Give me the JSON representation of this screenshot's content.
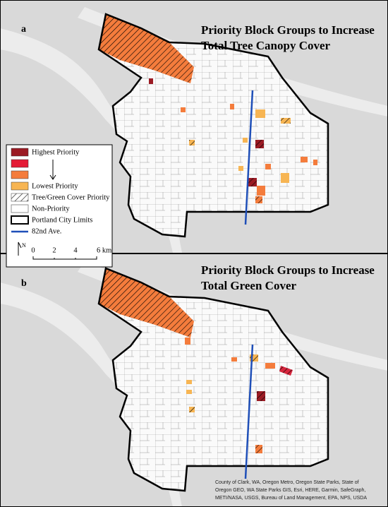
{
  "panels": [
    {
      "label": "a",
      "title": [
        "Priority Block Groups to Increase",
        "Total Tree Canopy Cover"
      ]
    },
    {
      "label": "b",
      "title": [
        "Priority Block Groups to Increase",
        "Total Green Cover"
      ]
    }
  ],
  "legend": {
    "items": [
      "Highest Priority",
      "Lowest Priority",
      "Tree/Green Cover Priority",
      "Non-Priority",
      "Portland City Limits",
      "82nd Ave."
    ],
    "north": "N",
    "scale": [
      "0",
      "2",
      "4",
      "6 km"
    ]
  },
  "attribution": [
    "County of Clark, WA, Oregon Metro, Oregon State Parks, State of",
    "Oregon GEO, WA State Parks GIS, Esri, HERE, Garmin, SafeGraph,",
    "METI/NASA, USGS, Bureau of Land Management, EPA, NPS, USDA"
  ]
}
